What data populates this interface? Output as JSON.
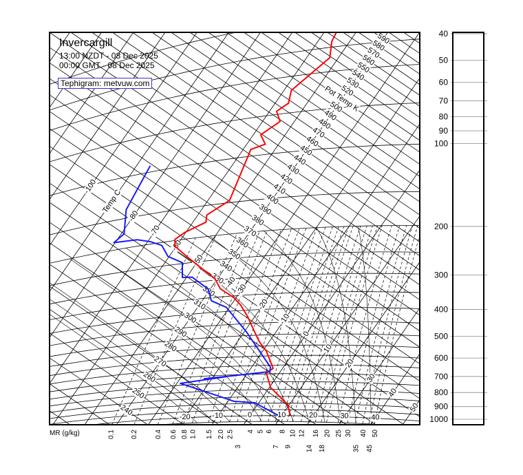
{
  "header": {
    "station": "Invercargill",
    "local_time": "13:00 NZDT - 08 Dec 2025",
    "gmt_time": "00:00 GMT - 08 Dec 2025",
    "credit": "Tephigram: metvuw.com"
  },
  "colors": {
    "temperature": "#ff0000",
    "dewpoint": "#1a1aff",
    "grid": "#000000",
    "credit_border": "#3a32c8"
  },
  "chart_data": {
    "type": "line",
    "diagram": "tephigram",
    "temperature_label": "Temp C",
    "potential_temperature_label": "Pot Temp K",
    "mixing_ratio_label": "MR (g/kg)",
    "isotherm_labels": [
      "-100",
      "-80",
      "-70",
      "-60",
      "-50",
      "-40",
      "-30",
      "-20",
      "-10",
      "0",
      "10",
      "20",
      "30",
      "40",
      "50"
    ],
    "isotherm_labels_1000hpa": [
      "-20",
      "-10",
      "0",
      "10",
      "20",
      "30",
      "40"
    ],
    "theta_labels": [
      "240",
      "250",
      "260",
      "270",
      "280",
      "290",
      "300",
      "310",
      "320",
      "330",
      "340",
      "350",
      "360",
      "370",
      "380",
      "390",
      "400",
      "410",
      "420",
      "430",
      "440",
      "450",
      "460",
      "470",
      "480",
      "490",
      "500",
      "520",
      "530",
      "540",
      "550",
      "560",
      "570",
      "580",
      "590"
    ],
    "mixing_ratio_values": [
      "0.1",
      "0.2",
      "0.4",
      "0.6",
      "0.8",
      "1.0",
      "1.5",
      "2.0",
      "2.5",
      "3",
      "4",
      "5",
      "6",
      "7",
      "8",
      "9",
      "10",
      "12",
      "14",
      "16",
      "18",
      "20",
      "25",
      "30",
      "35",
      "40",
      "45",
      "50"
    ],
    "pressure_axis_labels": [
      "40",
      "50",
      "60",
      "70",
      "80",
      "90",
      "100",
      "200",
      "300",
      "400",
      "500",
      "600",
      "700",
      "800",
      "900",
      "1000"
    ],
    "series": [
      {
        "key": "temperature",
        "units": "hPa, degC",
        "points": [
          [
            35,
            -56.2
          ],
          [
            38,
            -55.6
          ],
          [
            44,
            -52.7
          ],
          [
            57,
            -57.7
          ],
          [
            64,
            -55.8
          ],
          [
            68,
            -57.8
          ],
          [
            75,
            -54.5
          ],
          [
            83,
            -57.7
          ],
          [
            91,
            -54.2
          ],
          [
            94,
            -57.6
          ],
          [
            147,
            -53.2
          ],
          [
            164,
            -57.2
          ],
          [
            175,
            -55.9
          ],
          [
            188,
            -60.4
          ],
          [
            198,
            -61.9
          ],
          [
            211,
            -60.4
          ],
          [
            236,
            -54.3
          ],
          [
            296,
            -40.8
          ],
          [
            326,
            -36.8
          ],
          [
            354,
            -31.0
          ],
          [
            380,
            -27.1
          ],
          [
            424,
            -22.2
          ],
          [
            479,
            -17.3
          ],
          [
            531,
            -13.0
          ],
          [
            575,
            -8.9
          ],
          [
            668,
            -3.0
          ],
          [
            695,
            -4.1
          ],
          [
            787,
            0.4
          ],
          [
            886,
            7.7
          ],
          [
            907,
            9.4
          ],
          [
            997,
            12.6
          ]
        ]
      },
      {
        "key": "dewpoint",
        "units": "hPa, degC",
        "points": [
          [
            94,
            -85.7
          ],
          [
            138,
            -83.7
          ],
          [
            174,
            -79.1
          ],
          [
            186,
            -80.4
          ],
          [
            188,
            -73.7
          ],
          [
            196,
            -68.9
          ],
          [
            206,
            -64.7
          ],
          [
            230,
            -60.4
          ],
          [
            248,
            -54.5
          ],
          [
            284,
            -51.3
          ],
          [
            286,
            -48.3
          ],
          [
            323,
            -40.7
          ],
          [
            360,
            -37.1
          ],
          [
            386,
            -30.9
          ],
          [
            484,
            -19.3
          ],
          [
            661,
            -4.1
          ],
          [
            687,
            -3.3
          ],
          [
            708,
            -15.7
          ],
          [
            716,
            -22.4
          ],
          [
            710,
            -16.0
          ],
          [
            737,
            -28.9
          ],
          [
            837,
            -14.3
          ],
          [
            881,
            -8.1
          ],
          [
            895,
            -1.3
          ],
          [
            997,
            8.8
          ]
        ]
      }
    ]
  }
}
